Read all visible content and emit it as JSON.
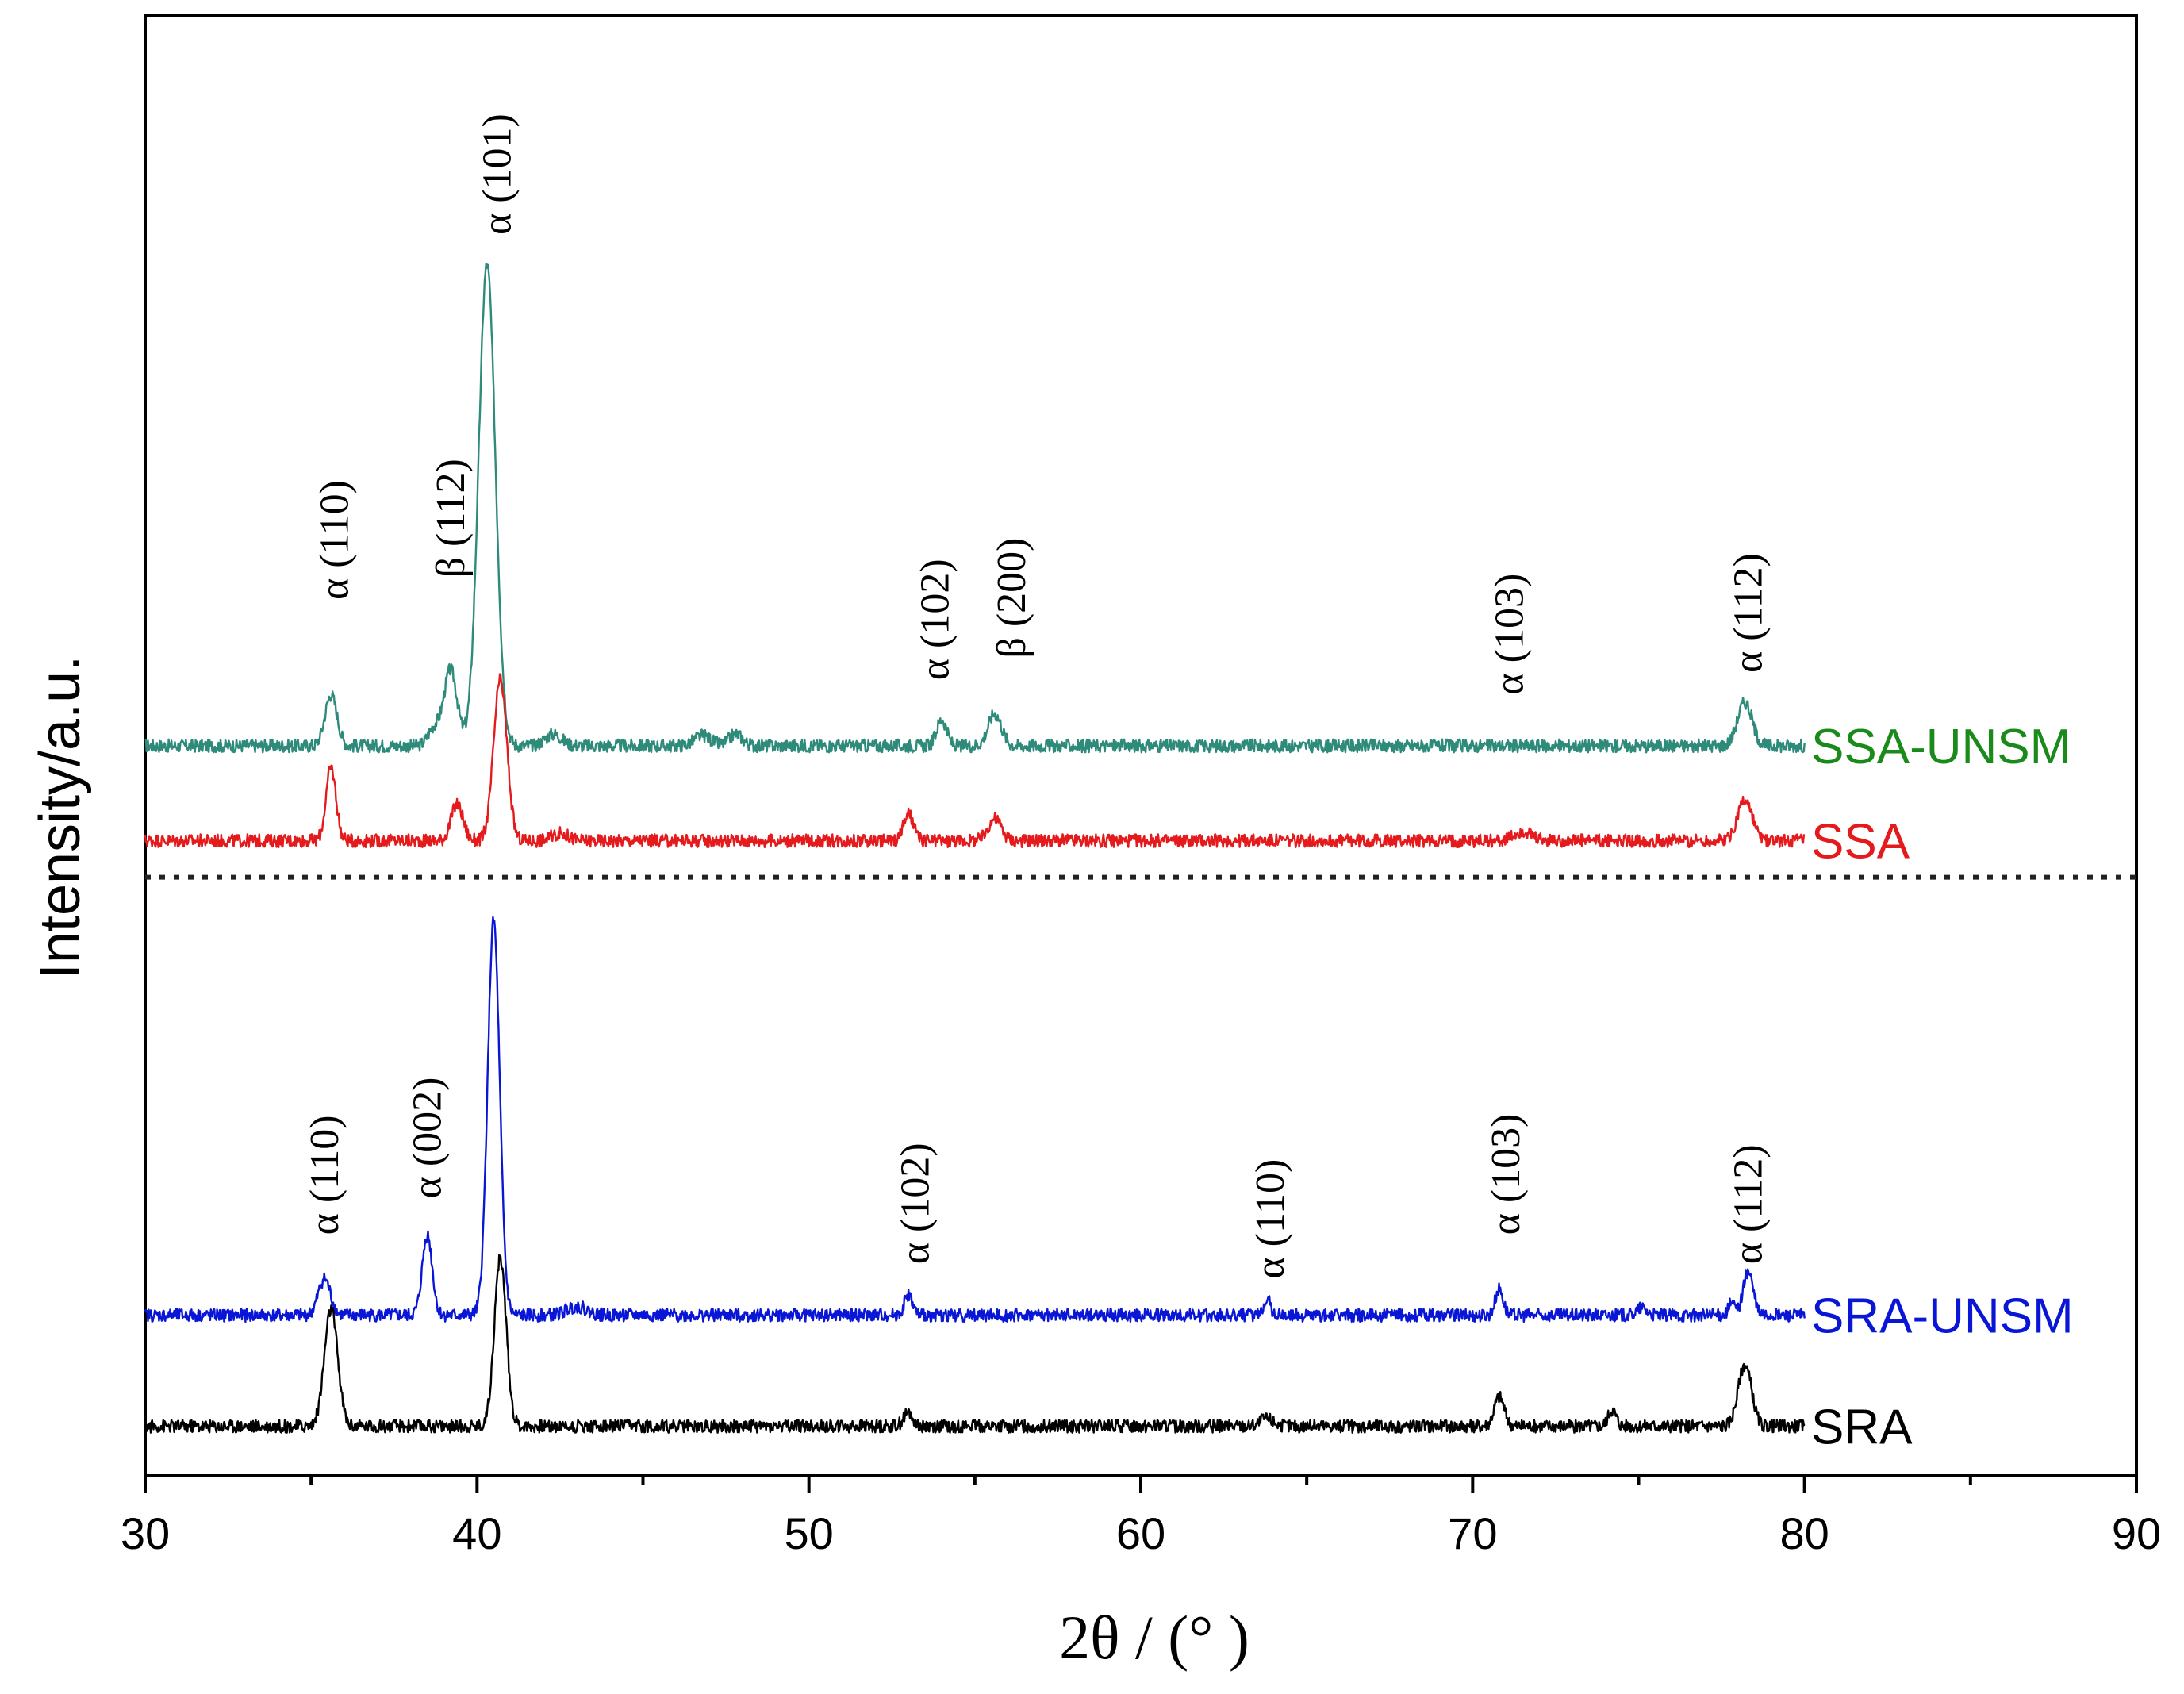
{
  "chart_data": {
    "type": "line",
    "title": "",
    "xlabel": "2θ / (°  )",
    "ylabel": "Intensity/a.u.",
    "xlim": [
      30,
      90
    ],
    "ylim": [
      0,
      100
    ],
    "xticks": [
      30,
      40,
      50,
      60,
      70,
      80,
      90
    ],
    "grid": false,
    "separator": {
      "style": "dotted",
      "level": 41
    },
    "series": [
      {
        "name": "SSA-UNSM",
        "color": "#2e8b7a",
        "label_color": "#1a8a1a",
        "baseline": 50,
        "x_range": [
          30,
          80
        ],
        "peaks": [
          {
            "x": 35.6,
            "h": 3.5,
            "w": 0.18
          },
          {
            "x": 38.7,
            "h": 1.2,
            "w": 0.18
          },
          {
            "x": 39.2,
            "h": 5.2,
            "w": 0.2
          },
          {
            "x": 40.3,
            "h": 33.0,
            "w": 0.25
          },
          {
            "x": 42.3,
            "h": 0.8,
            "w": 0.25
          },
          {
            "x": 46.8,
            "h": 0.7,
            "w": 0.25
          },
          {
            "x": 47.8,
            "h": 0.8,
            "w": 0.2
          },
          {
            "x": 54.0,
            "h": 1.8,
            "w": 0.15
          },
          {
            "x": 55.6,
            "h": 2.2,
            "w": 0.2
          },
          {
            "x": 78.2,
            "h": 3.0,
            "w": 0.22
          }
        ]
      },
      {
        "name": "SSA",
        "color": "#e41a1c",
        "label_color": "#e41a1c",
        "baseline": 43.5,
        "x_range": [
          30,
          80
        ],
        "peaks": [
          {
            "x": 35.6,
            "h": 5.0,
            "w": 0.15
          },
          {
            "x": 39.4,
            "h": 2.5,
            "w": 0.18
          },
          {
            "x": 40.7,
            "h": 11.0,
            "w": 0.2
          },
          {
            "x": 42.5,
            "h": 0.5,
            "w": 0.25
          },
          {
            "x": 53.0,
            "h": 1.8,
            "w": 0.15
          },
          {
            "x": 55.6,
            "h": 1.5,
            "w": 0.2
          },
          {
            "x": 71.5,
            "h": 0.6,
            "w": 0.25
          },
          {
            "x": 78.2,
            "h": 2.8,
            "w": 0.22
          }
        ]
      },
      {
        "name": "SRA-UNSM",
        "color": "#0a16d6",
        "label_color": "#0a16d6",
        "baseline": 11.0,
        "x_range": [
          30,
          80
        ],
        "peaks": [
          {
            "x": 35.4,
            "h": 2.5,
            "w": 0.18
          },
          {
            "x": 38.5,
            "h": 5.5,
            "w": 0.15
          },
          {
            "x": 40.5,
            "h": 27.0,
            "w": 0.18
          },
          {
            "x": 43.0,
            "h": 0.6,
            "w": 0.3
          },
          {
            "x": 53.0,
            "h": 1.4,
            "w": 0.12
          },
          {
            "x": 63.8,
            "h": 1.2,
            "w": 0.1
          },
          {
            "x": 70.8,
            "h": 1.8,
            "w": 0.12
          },
          {
            "x": 75.1,
            "h": 0.5,
            "w": 0.15
          },
          {
            "x": 77.8,
            "h": 0.8,
            "w": 0.1
          },
          {
            "x": 78.3,
            "h": 3.0,
            "w": 0.15
          }
        ]
      },
      {
        "name": "SRA",
        "color": "#000000",
        "label_color": "#000000",
        "baseline": 3.4,
        "x_range": [
          30,
          80
        ],
        "peaks": [
          {
            "x": 35.6,
            "h": 8.0,
            "w": 0.2
          },
          {
            "x": 40.7,
            "h": 11.5,
            "w": 0.18
          },
          {
            "x": 53.0,
            "h": 0.9,
            "w": 0.15
          },
          {
            "x": 63.8,
            "h": 0.5,
            "w": 0.2
          },
          {
            "x": 70.8,
            "h": 2.0,
            "w": 0.15
          },
          {
            "x": 74.2,
            "h": 1.1,
            "w": 0.12
          },
          {
            "x": 78.2,
            "h": 4.2,
            "w": 0.2
          }
        ]
      }
    ],
    "annotations": [
      {
        "text": "α (110)",
        "x": 35.7,
        "y": 60.0
      },
      {
        "text": "β (112)",
        "x": 39.2,
        "y": 61.5
      },
      {
        "text": "α (101)",
        "x": 40.6,
        "y": 85.0
      },
      {
        "text": "α (102)",
        "x": 53.8,
        "y": 54.5
      },
      {
        "text": "β (200)",
        "x": 56.1,
        "y": 56.0
      },
      {
        "text": "α (103)",
        "x": 71.1,
        "y": 53.5
      },
      {
        "text": "α (112)",
        "x": 78.3,
        "y": 55.0
      },
      {
        "text": "α (110)",
        "x": 35.4,
        "y": 16.5
      },
      {
        "text": "α (002)",
        "x": 38.5,
        "y": 19.0
      },
      {
        "text": "α (102)",
        "x": 53.2,
        "y": 14.5
      },
      {
        "text": "α (110)",
        "x": 63.9,
        "y": 13.5
      },
      {
        "text": "α (103)",
        "x": 71.0,
        "y": 16.5
      },
      {
        "text": "α (112)",
        "x": 78.3,
        "y": 14.5
      }
    ]
  }
}
